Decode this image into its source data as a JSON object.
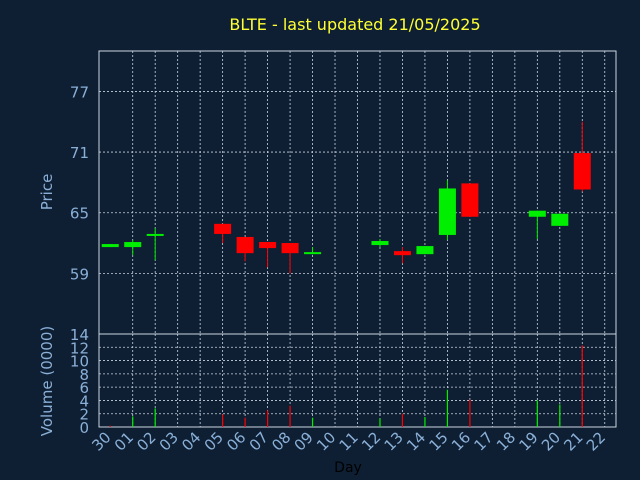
{
  "chart_data": [
    {
      "type": "candlestick",
      "title": "BLTE - last updated 21/05/2025",
      "ylabel": "Price",
      "ylim": [
        53,
        81
      ],
      "yticks": [
        59,
        65,
        71,
        77
      ],
      "grid": true,
      "categories": [
        "30",
        "01",
        "02",
        "03",
        "04",
        "05",
        "06",
        "07",
        "08",
        "09",
        "10",
        "11",
        "12",
        "13",
        "14",
        "15",
        "16",
        "17",
        "18",
        "19",
        "20",
        "21",
        "22"
      ],
      "candles": [
        {
          "x": "30",
          "open": 61.6,
          "close": 61.9,
          "high": 61.9,
          "low": 61.6
        },
        {
          "x": "01",
          "open": 61.6,
          "close": 62.1,
          "high": 62.3,
          "low": 60.8
        },
        {
          "x": "02",
          "open": 62.7,
          "close": 62.9,
          "high": 63.5,
          "low": 60.3
        },
        {
          "x": "05",
          "open": 63.9,
          "close": 62.9,
          "high": 63.9,
          "low": 62.0
        },
        {
          "x": "06",
          "open": 62.6,
          "close": 61.0,
          "high": 62.6,
          "low": 60.2
        },
        {
          "x": "07",
          "open": 62.1,
          "close": 61.5,
          "high": 62.1,
          "low": 59.6
        },
        {
          "x": "08",
          "open": 62.0,
          "close": 61.0,
          "high": 62.0,
          "low": 59.0
        },
        {
          "x": "09",
          "open": 60.9,
          "close": 61.1,
          "high": 61.6,
          "low": 60.9
        },
        {
          "x": "12",
          "open": 61.8,
          "close": 62.2,
          "high": 62.4,
          "low": 61.6
        },
        {
          "x": "13",
          "open": 61.2,
          "close": 60.8,
          "high": 61.6,
          "low": 60.0
        },
        {
          "x": "14",
          "open": 60.9,
          "close": 61.7,
          "high": 61.7,
          "low": 60.9
        },
        {
          "x": "15",
          "open": 62.8,
          "close": 67.4,
          "high": 68.2,
          "low": 62.3
        },
        {
          "x": "16",
          "open": 67.9,
          "close": 64.6,
          "high": 67.9,
          "low": 64.6
        },
        {
          "x": "19",
          "open": 64.6,
          "close": 65.2,
          "high": 65.2,
          "low": 62.4
        },
        {
          "x": "20",
          "open": 63.7,
          "close": 64.9,
          "high": 64.9,
          "low": 63.7
        },
        {
          "x": "21",
          "open": 70.9,
          "close": 67.3,
          "high": 74.0,
          "low": 67.1
        }
      ]
    },
    {
      "type": "bar",
      "ylabel": "Volume (0000)",
      "xlabel": "Day",
      "ylim": [
        0,
        14
      ],
      "yticks": [
        0,
        2,
        4,
        6,
        8,
        10,
        12,
        14
      ],
      "grid": true,
      "categories": [
        "30",
        "01",
        "02",
        "03",
        "04",
        "05",
        "06",
        "07",
        "08",
        "09",
        "10",
        "11",
        "12",
        "13",
        "14",
        "15",
        "16",
        "17",
        "18",
        "19",
        "20",
        "21",
        "22"
      ],
      "bars": [
        {
          "x": "30",
          "value": 0.2,
          "direction": "down"
        },
        {
          "x": "01",
          "value": 1.6,
          "direction": "up"
        },
        {
          "x": "02",
          "value": 2.8,
          "direction": "up"
        },
        {
          "x": "05",
          "value": 1.9,
          "direction": "down"
        },
        {
          "x": "06",
          "value": 1.4,
          "direction": "down"
        },
        {
          "x": "07",
          "value": 2.5,
          "direction": "down"
        },
        {
          "x": "08",
          "value": 3.2,
          "direction": "down"
        },
        {
          "x": "09",
          "value": 1.4,
          "direction": "up"
        },
        {
          "x": "12",
          "value": 1.3,
          "direction": "up"
        },
        {
          "x": "13",
          "value": 2.0,
          "direction": "down"
        },
        {
          "x": "14",
          "value": 1.5,
          "direction": "up"
        },
        {
          "x": "15",
          "value": 5.6,
          "direction": "up"
        },
        {
          "x": "16",
          "value": 4.1,
          "direction": "down"
        },
        {
          "x": "19",
          "value": 4.0,
          "direction": "up"
        },
        {
          "x": "20",
          "value": 3.4,
          "direction": "up"
        },
        {
          "x": "21",
          "value": 12.3,
          "direction": "down"
        }
      ]
    }
  ],
  "colors": {
    "up": "#00ee00",
    "down": "#ff0000",
    "title": "#ffff33",
    "tick": "#8ab0d8",
    "xlabel": "#000000",
    "background": "#0f1f33",
    "frame": "#c8d4e0"
  }
}
